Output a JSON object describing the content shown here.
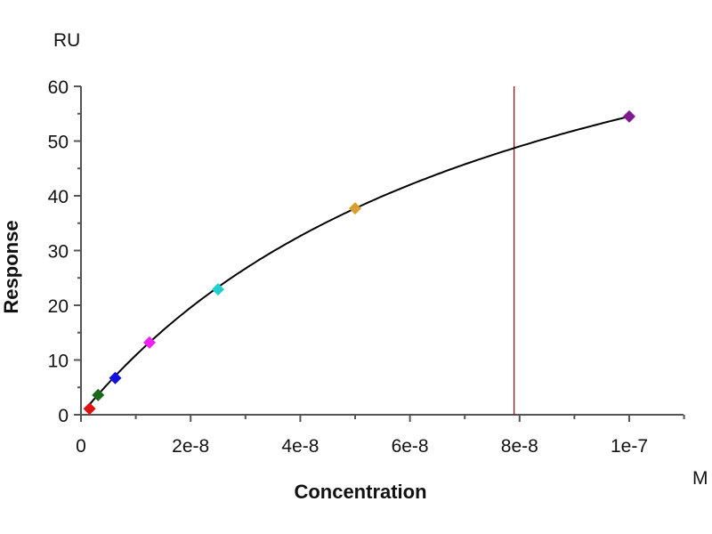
{
  "chart_data": {
    "type": "scatter",
    "title": "",
    "xlabel": "Concentration",
    "ylabel": "Response",
    "x_unit": "M",
    "y_unit": "RU",
    "xlim": [
      0,
      1.1e-07
    ],
    "ylim": [
      0,
      60
    ],
    "x_ticks": [
      0,
      2e-08,
      4e-08,
      6e-08,
      8e-08,
      1e-07
    ],
    "x_tick_labels": [
      "0",
      "2e-8",
      "4e-8",
      "6e-8",
      "8e-8",
      "1e-7"
    ],
    "y_ticks": [
      0,
      10,
      20,
      30,
      40,
      50,
      60
    ],
    "y_tick_labels": [
      "0",
      "10",
      "20",
      "30",
      "40",
      "50",
      "60"
    ],
    "grid": false,
    "points": [
      {
        "x": 1.5625e-09,
        "y": 1.1,
        "color": "#e01010"
      },
      {
        "x": 3.125e-09,
        "y": 3.6,
        "color": "#1a6b1a"
      },
      {
        "x": 6.25e-09,
        "y": 6.7,
        "color": "#1010e0"
      },
      {
        "x": 1.25e-08,
        "y": 13.2,
        "color": "#f020f0"
      },
      {
        "x": 2.5e-08,
        "y": 22.9,
        "color": "#20d0d0"
      },
      {
        "x": 5e-08,
        "y": 37.7,
        "color": "#d8a030"
      },
      {
        "x": 1e-07,
        "y": 54.5,
        "color": "#801890"
      }
    ],
    "fit": {
      "model": "steady-state affinity",
      "Rmax": 98.3,
      "KD": 8.04e-08,
      "color": "#000000"
    },
    "vertical_marker": {
      "x": 7.9e-08,
      "color": "#a01020"
    }
  }
}
